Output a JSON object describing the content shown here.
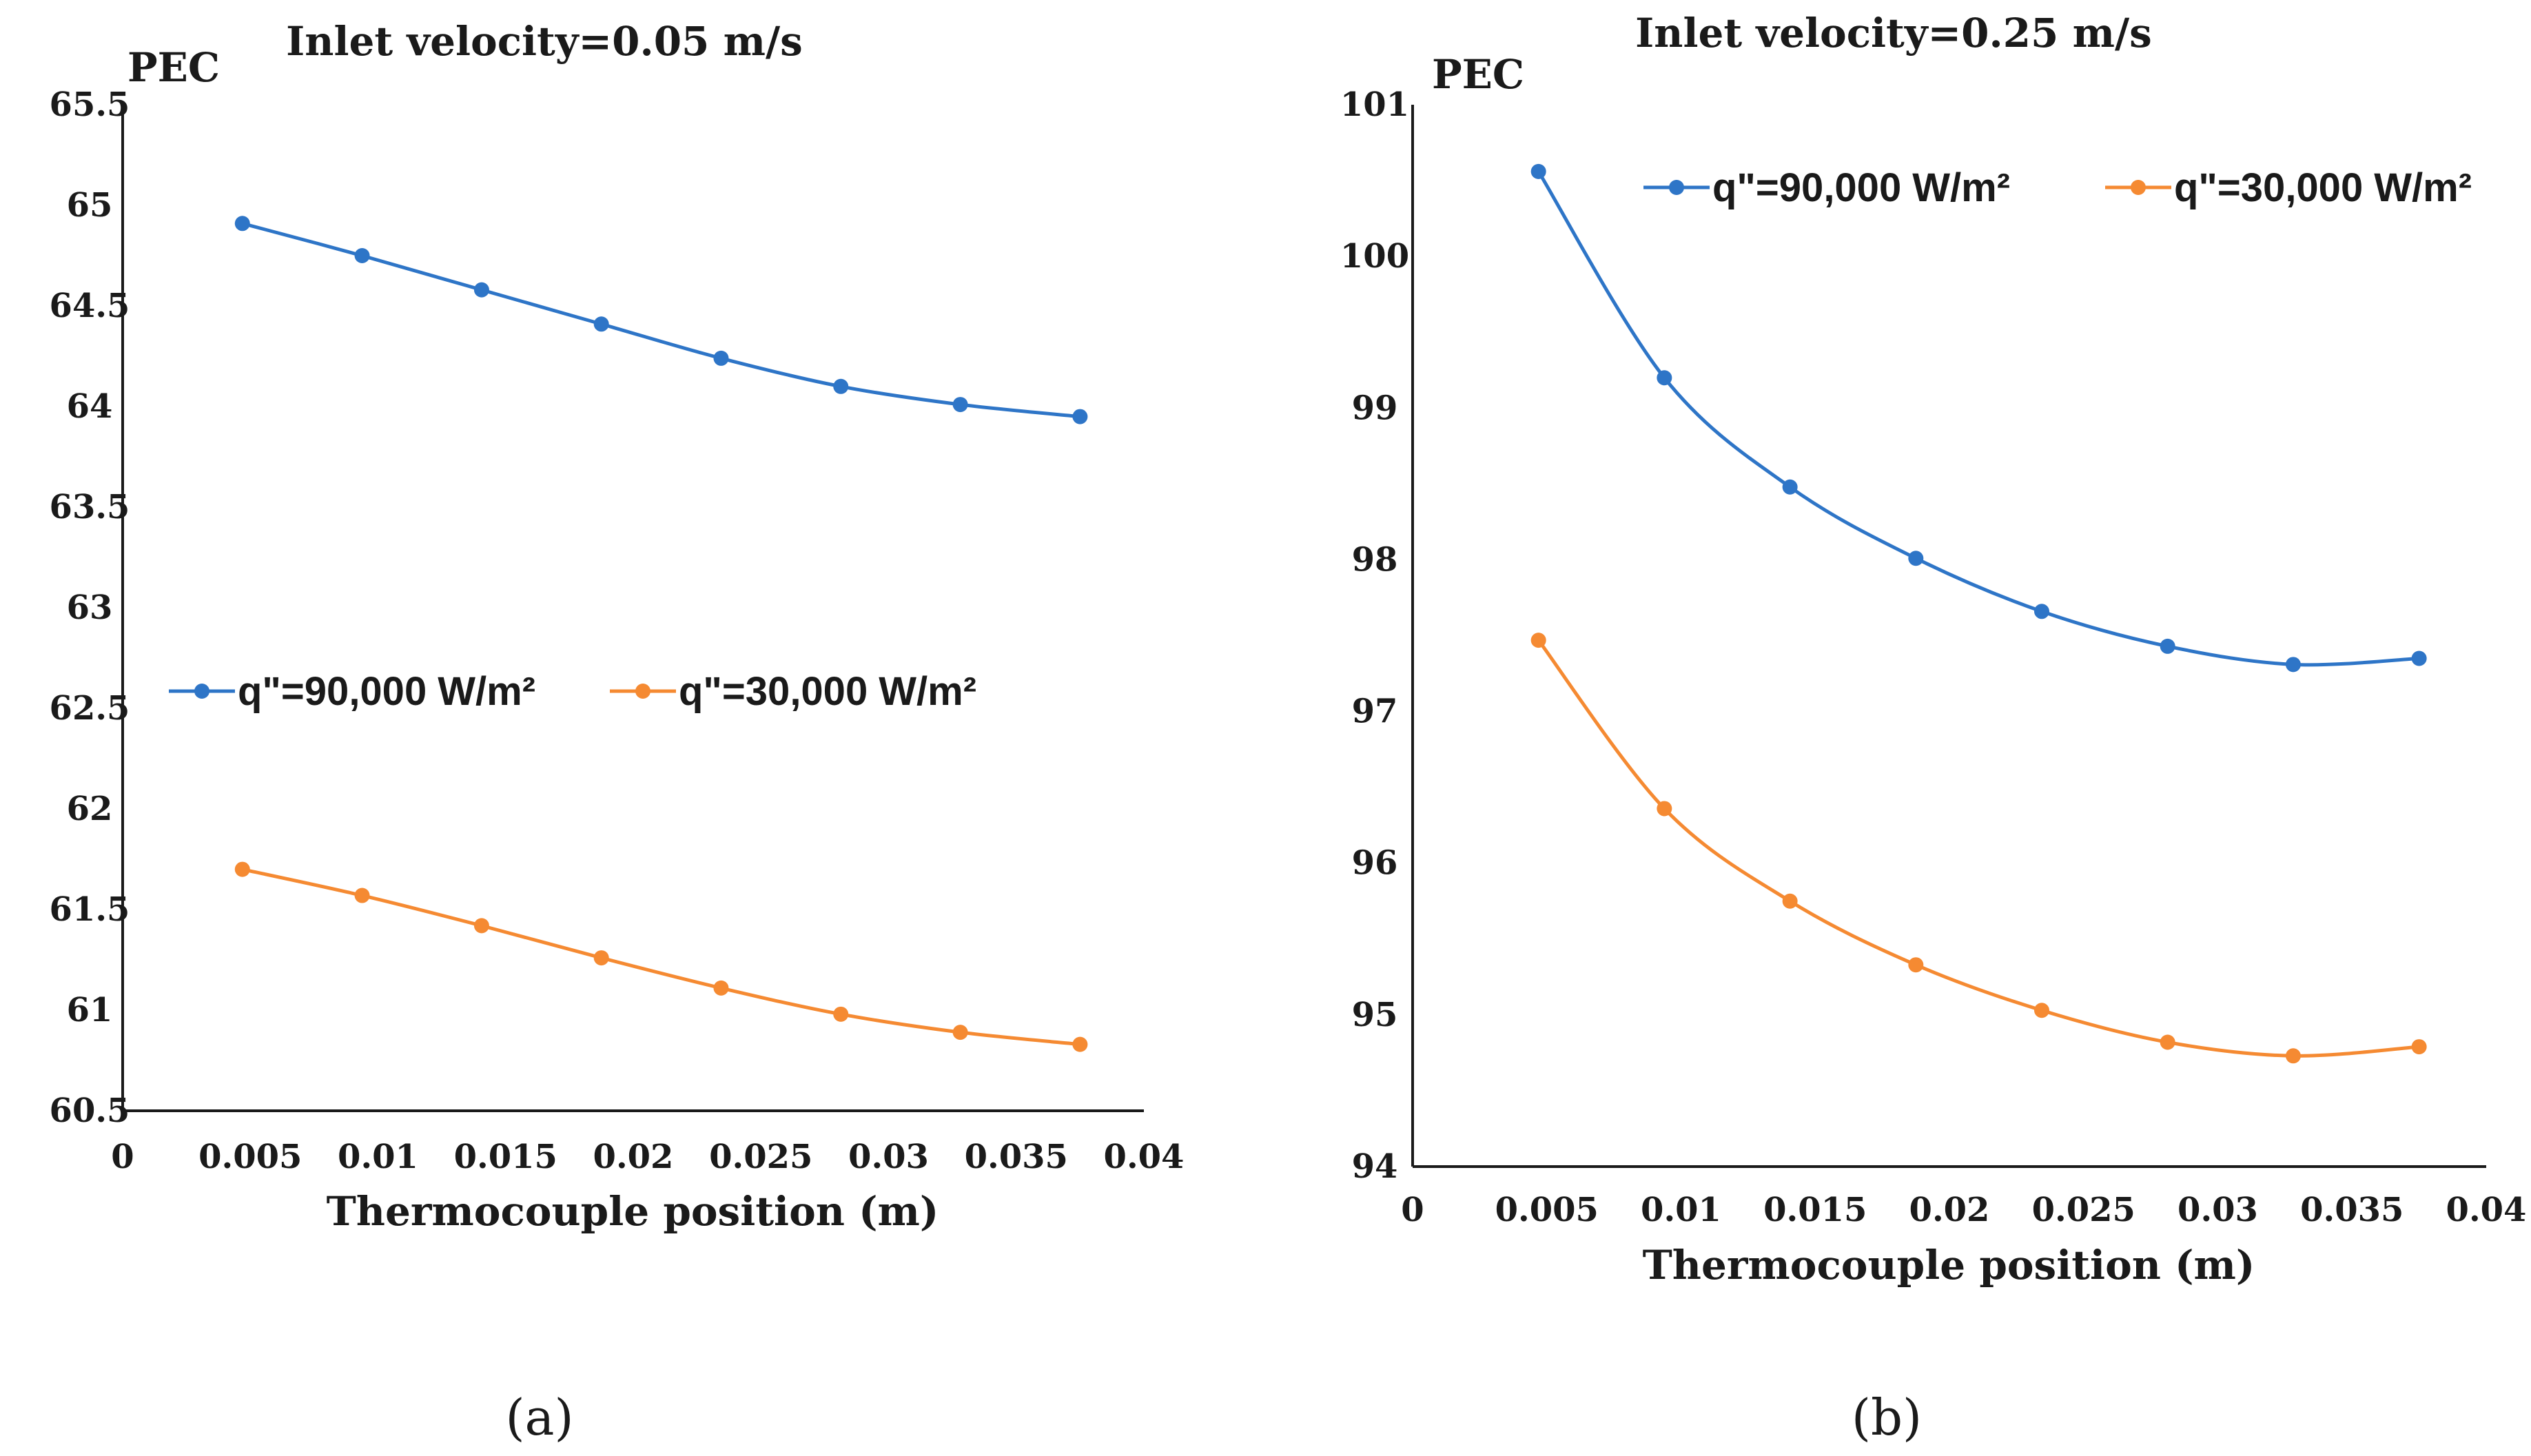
{
  "colors": {
    "series1": "#2e75c7",
    "series2": "#f58a32",
    "axis": "#1a1a1a"
  },
  "chart_data": [
    {
      "type": "line",
      "panel_label": "(a)",
      "title": "Inlet velocity=0.05 m/s",
      "xlabel": "Thermocouple position (m)",
      "ylabel": "PEC",
      "xlim": [
        0,
        0.04
      ],
      "ylim": [
        60.5,
        65.5
      ],
      "x_ticks": [
        "0",
        "0.005",
        "0.01",
        "0.015",
        "0.02",
        "0.025",
        "0.03",
        "0.035",
        "0.04"
      ],
      "y_ticks": [
        "60.5",
        "61",
        "61.5",
        "62",
        "62.5",
        "63",
        "63.5",
        "64",
        "64.5",
        "65",
        "65.5"
      ],
      "legend_position": "middle-left",
      "series": [
        {
          "name": "q\"=90,000 W/m²",
          "x": [
            0.00469,
            0.00938,
            0.01406,
            0.01875,
            0.02344,
            0.02813,
            0.03281,
            0.0375
          ],
          "values": [
            64.91,
            64.75,
            64.58,
            64.41,
            64.24,
            64.1,
            64.01,
            63.95
          ]
        },
        {
          "name": "q\"=30,000 W/m²",
          "x": [
            0.00469,
            0.00938,
            0.01406,
            0.01875,
            0.02344,
            0.02813,
            0.03281,
            0.0375
          ],
          "values": [
            61.7,
            61.57,
            61.42,
            61.26,
            61.11,
            60.98,
            60.89,
            60.83
          ]
        }
      ]
    },
    {
      "type": "line",
      "panel_label": "(b)",
      "title": "Inlet velocity=0.25 m/s",
      "xlabel": "Thermocouple position (m)",
      "ylabel": "PEC",
      "xlim": [
        0,
        0.04
      ],
      "ylim": [
        94,
        101
      ],
      "x_ticks": [
        "0",
        "0.005",
        "0.01",
        "0.015",
        "0.02",
        "0.025",
        "0.03",
        "0.035",
        "0.04"
      ],
      "y_ticks": [
        "94",
        "95",
        "96",
        "97",
        "98",
        "99",
        "100",
        "101"
      ],
      "legend_position": "top",
      "series": [
        {
          "name": "q\"=90,000 W/m²",
          "x": [
            0.00469,
            0.00938,
            0.01406,
            0.01875,
            0.02344,
            0.02813,
            0.03281,
            0.0375
          ],
          "values": [
            100.56,
            99.2,
            98.48,
            98.01,
            97.66,
            97.43,
            97.31,
            97.35
          ]
        },
        {
          "name": "q\"=30,000 W/m²",
          "x": [
            0.00469,
            0.00938,
            0.01406,
            0.01875,
            0.02344,
            0.02813,
            0.03281,
            0.0375
          ],
          "values": [
            97.47,
            96.36,
            95.75,
            95.33,
            95.03,
            94.82,
            94.73,
            94.79
          ]
        }
      ]
    }
  ]
}
